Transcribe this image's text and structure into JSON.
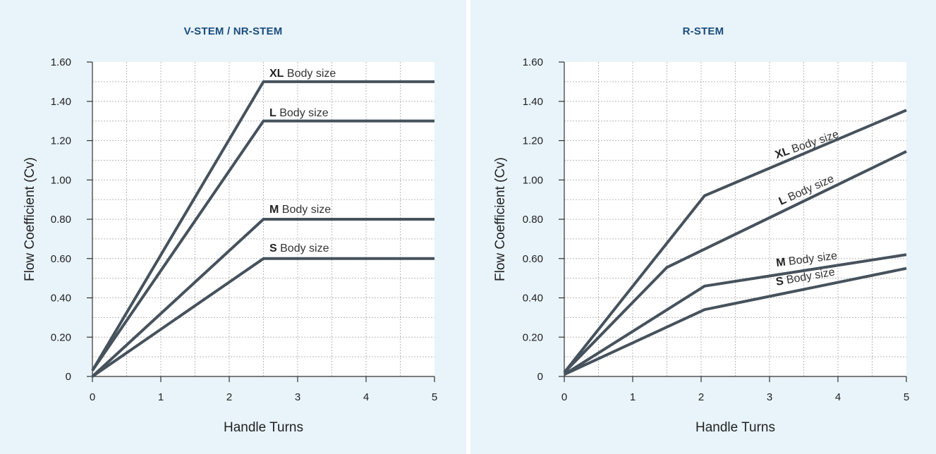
{
  "colors": {
    "panel_bg": "#e8f3fa",
    "line": "#46525c",
    "grid": "#b8b8b8",
    "title": "#1b4d7c"
  },
  "chart_data": [
    {
      "type": "line",
      "title": "V-STEM / NR-STEM",
      "xlabel": "Handle Turns",
      "ylabel": "Flow Coefficient (Cv)",
      "xlim": [
        0,
        5
      ],
      "ylim": [
        0,
        1.6
      ],
      "xticks": [
        "0",
        "1",
        "2",
        "3",
        "4",
        "5"
      ],
      "yticks": [
        "0",
        "0.20",
        "0.40",
        "0.60",
        "0.80",
        "1.00",
        "1.20",
        "1.40",
        "1.60"
      ],
      "grid": true,
      "series": [
        {
          "size": "XL",
          "name": "Body size",
          "x": [
            0,
            2.5,
            5
          ],
          "y": [
            0.03,
            1.5,
            1.5
          ]
        },
        {
          "size": "L",
          "name": "Body size",
          "x": [
            0,
            2.5,
            5
          ],
          "y": [
            0.03,
            1.3,
            1.3
          ]
        },
        {
          "size": "M",
          "name": "Body size",
          "x": [
            0,
            2.5,
            5
          ],
          "y": [
            0.0,
            0.8,
            0.8
          ]
        },
        {
          "size": "S",
          "name": "Body size",
          "x": [
            0,
            2.5,
            5
          ],
          "y": [
            0.0,
            0.6,
            0.6
          ]
        }
      ]
    },
    {
      "type": "line",
      "title": "R-STEM",
      "xlabel": "Handle Turns",
      "ylabel": "Flow Coefficient (Cv)",
      "xlim": [
        0,
        5
      ],
      "ylim": [
        0,
        1.6
      ],
      "xticks": [
        "0",
        "1",
        "2",
        "3",
        "4",
        "5"
      ],
      "yticks": [
        "0",
        "0.20",
        "0.40",
        "0.60",
        "0.80",
        "1.00",
        "1.20",
        "1.40",
        "1.60"
      ],
      "grid": true,
      "series": [
        {
          "size": "XL",
          "name": "Body size",
          "x": [
            0,
            2.05,
            5
          ],
          "y": [
            0.02,
            0.92,
            1.355
          ]
        },
        {
          "size": "L",
          "name": "Body size",
          "x": [
            0,
            1.5,
            5
          ],
          "y": [
            0.02,
            0.555,
            1.145
          ]
        },
        {
          "size": "M",
          "name": "Body size",
          "x": [
            0,
            2.05,
            5
          ],
          "y": [
            0.01,
            0.46,
            0.62
          ]
        },
        {
          "size": "S",
          "name": "Body size",
          "x": [
            0,
            2.05,
            5
          ],
          "y": [
            0.01,
            0.34,
            0.55
          ]
        }
      ]
    }
  ]
}
